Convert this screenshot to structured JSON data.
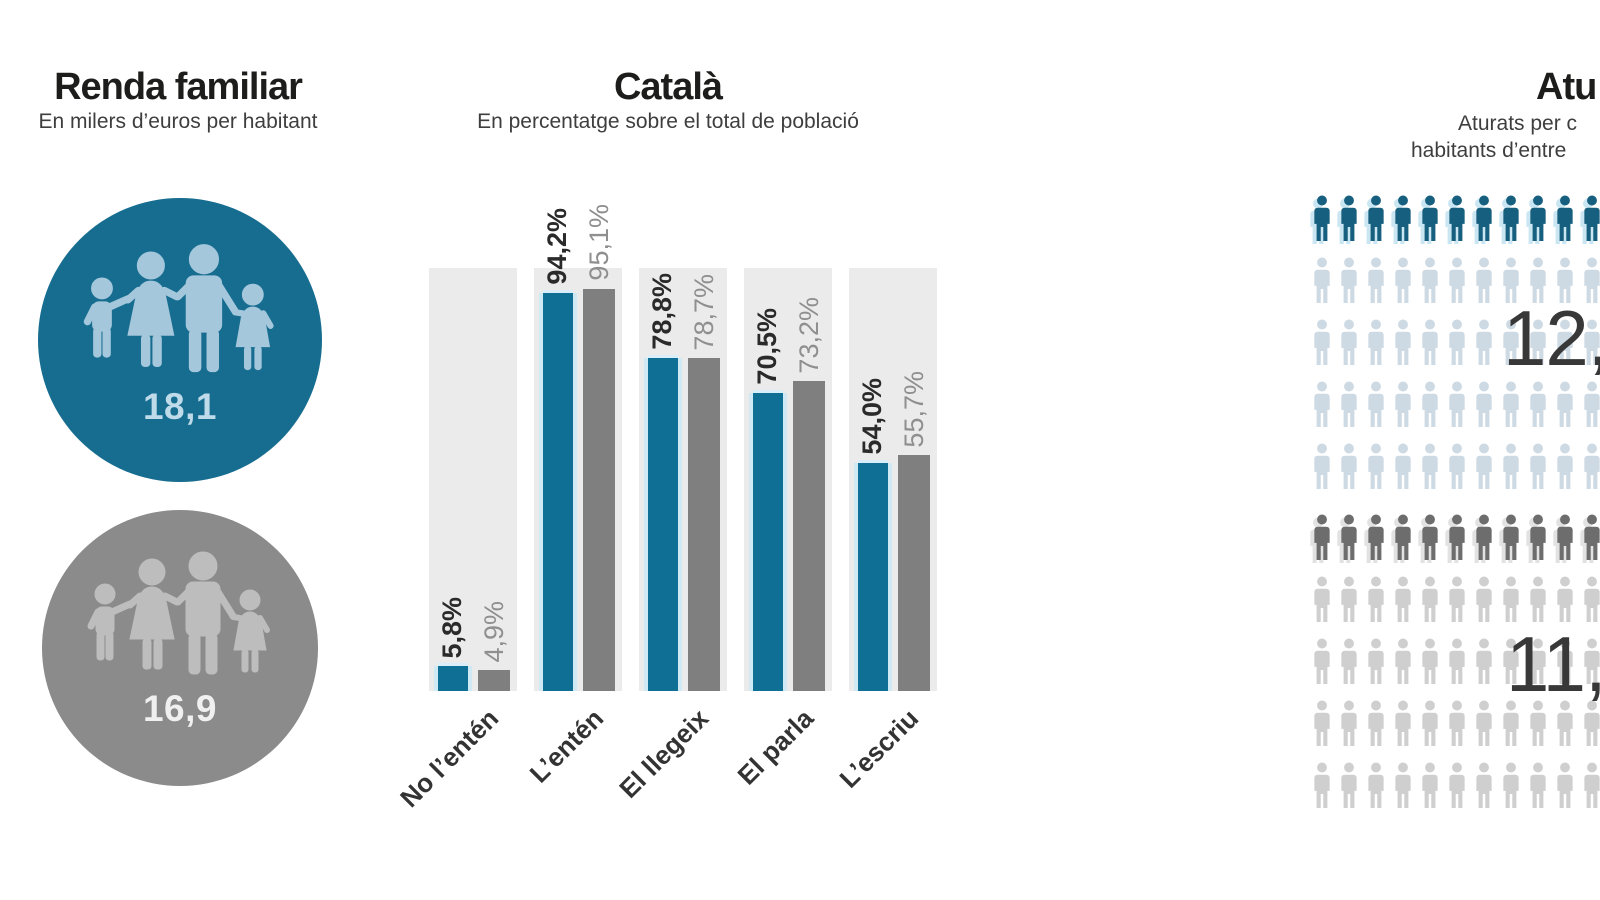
{
  "income": {
    "title": "Renda familiar",
    "subtitle": "En milers d’euros per habitant",
    "circles": [
      {
        "name": "highlight",
        "value": "18,1",
        "circle_color": "#176d90",
        "icon_color": "#a4c7dc",
        "value_color": "#bfdbea"
      },
      {
        "name": "comparison",
        "value": "16,9",
        "circle_color": "#8b8b8b",
        "icon_color": "#bdbdbd",
        "value_color": "#f0f0f0"
      }
    ]
  },
  "catalan": {
    "title": "Català",
    "subtitle": "En percentatge sobre el total de població"
  },
  "unemployment": {
    "title_visible": "Atu",
    "subtitle_line1_visible": "Aturats per c",
    "subtitle_line2_visible": "habitants d’entre",
    "pictographs": [
      {
        "value_visible": "12,",
        "rows": 5,
        "icons_per_row": 11,
        "dark_rows": 1,
        "dark_color": "#175f7e",
        "light_color": "#cdd9e3",
        "shadow_color": "#c9e6f2"
      },
      {
        "value_visible": "11,",
        "rows": 5,
        "icons_per_row": 11,
        "dark_rows": 1,
        "dark_color": "#6d6d6d",
        "light_color": "#cfcfcf",
        "shadow_color": "#e2e2e2"
      }
    ]
  },
  "chart_data": [
    {
      "type": "bar",
      "title": "Català",
      "subtitle": "En percentatge sobre el total de població",
      "categories": [
        "No l’entén",
        "L’entén",
        "El llegeix",
        "El parla",
        "L’escriu"
      ],
      "series": [
        {
          "name": "blue-series",
          "color": "#0f6f95",
          "values": [
            5.8,
            94.2,
            78.8,
            70.5,
            54.0
          ],
          "labels": [
            "5,8%",
            "94,2%",
            "78,8%",
            "70,5%",
            "54,0%"
          ]
        },
        {
          "name": "gray-series",
          "color": "#7f7f7f",
          "values": [
            4.9,
            95.1,
            78.7,
            73.2,
            55.7
          ],
          "labels": [
            "4,9%",
            "95,1%",
            "78,7%",
            "73,2%",
            "55,7%"
          ]
        }
      ],
      "ylim": [
        0,
        100
      ],
      "grid": false,
      "legend": "none",
      "value_labels_rotated": true,
      "track_color": "#ebebeb"
    },
    {
      "type": "pictograph",
      "title_visible": "Atu",
      "groups": [
        {
          "value_visible": "12,",
          "rows": 5,
          "icons_per_row_visible": 11,
          "highlighted_rows": 1
        },
        {
          "value_visible": "11,",
          "rows": 5,
          "icons_per_row_visible": 11,
          "highlighted_rows": 1
        }
      ]
    },
    {
      "type": "pictorial_kpi",
      "title": "Renda familiar",
      "values": [
        18.1,
        16.9
      ],
      "labels": [
        "18,1",
        "16,9"
      ]
    }
  ]
}
